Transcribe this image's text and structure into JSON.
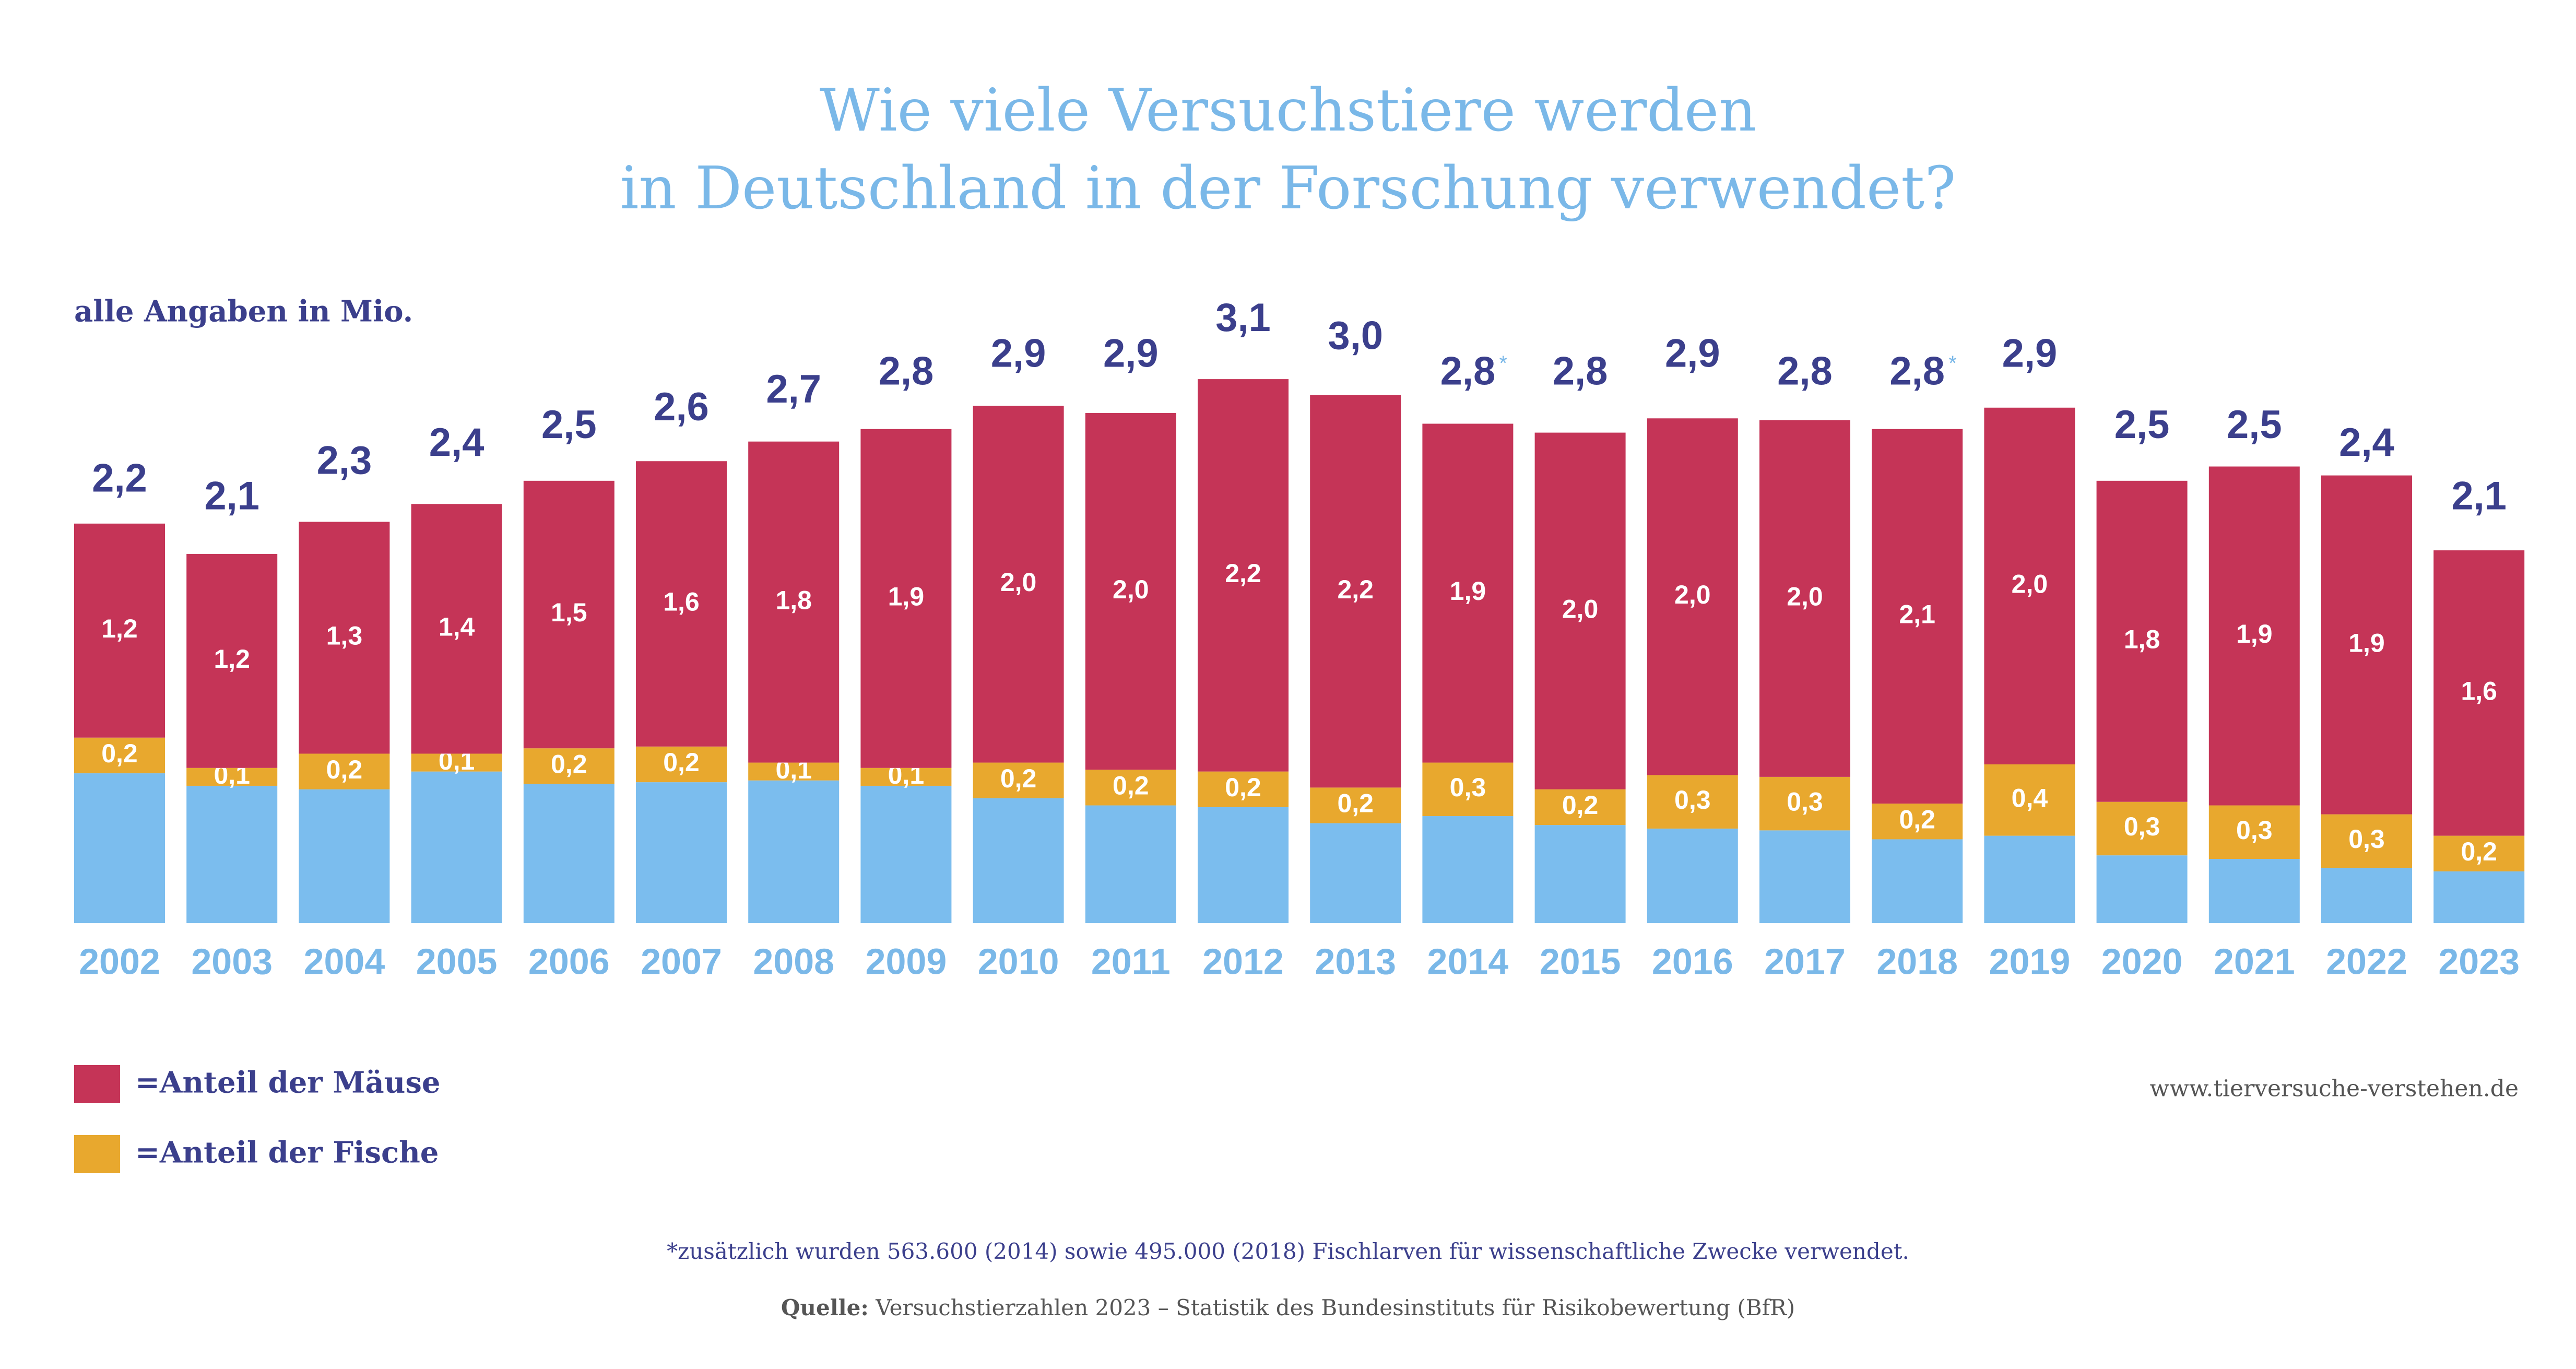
{
  "chart_data": {
    "type": "stacked-bar",
    "title": [
      "Wie viele Versuchstiere werden",
      "in Deutschland in der Forschung verwendet?"
    ],
    "subtitle": "alle Angaben in Mio.",
    "categories": [
      "2002",
      "2003",
      "2004",
      "2005",
      "2006",
      "2007",
      "2008",
      "2009",
      "2010",
      "2011",
      "2012",
      "2013",
      "2014",
      "2015",
      "2016",
      "2017",
      "2018",
      "2019",
      "2020",
      "2021",
      "2022",
      "2023"
    ],
    "series": [
      {
        "color": "#7bbdee",
        "values": [
          0.84,
          0.77,
          0.75,
          0.85,
          0.78,
          0.79,
          0.8,
          0.77,
          0.7,
          0.66,
          0.65,
          0.56,
          0.6,
          0.55,
          0.53,
          0.52,
          0.47,
          0.49,
          0.38,
          0.36,
          0.31,
          0.29
        ]
      },
      {
        "name": "=Anteil der Fische",
        "color": "#e8a82e",
        "values": [
          0.2,
          0.1,
          0.2,
          0.1,
          0.2,
          0.2,
          0.1,
          0.1,
          0.2,
          0.2,
          0.2,
          0.2,
          0.3,
          0.2,
          0.3,
          0.3,
          0.2,
          0.4,
          0.3,
          0.3,
          0.3,
          0.2
        ],
        "value_labels": [
          "0,2",
          "0,1",
          "0,2",
          "0,1",
          "0,2",
          "0,2",
          "0,1",
          "0,1",
          "0,2",
          "0,2",
          "0,2",
          "0,2",
          "0,3",
          "0,2",
          "0,3",
          "0,3",
          "0,2",
          "0,4",
          "0,3",
          "0,3",
          "0,3",
          "0,2"
        ]
      },
      {
        "name": "=Anteil der Mäuse",
        "color": "#c53457",
        "values": [
          1.2,
          1.2,
          1.3,
          1.4,
          1.5,
          1.6,
          1.8,
          1.9,
          2.0,
          2.0,
          2.2,
          2.2,
          1.9,
          2.0,
          2.0,
          2.0,
          2.1,
          2.0,
          1.8,
          1.9,
          1.9,
          1.6
        ],
        "value_labels": [
          "1,2",
          "1,2",
          "1,3",
          "1,4",
          "1,5",
          "1,6",
          "1,8",
          "1,9",
          "2,0",
          "2,0",
          "2,2",
          "2,2",
          "1,9",
          "2,0",
          "2,0",
          "2,0",
          "2,1",
          "2,0",
          "1,8",
          "1,9",
          "1,9",
          "1,6"
        ]
      }
    ],
    "totals": {
      "values": [
        2.2,
        2.1,
        2.3,
        2.4,
        2.5,
        2.6,
        2.7,
        2.8,
        2.9,
        2.9,
        3.1,
        3.0,
        2.8,
        2.8,
        2.9,
        2.8,
        2.8,
        2.9,
        2.5,
        2.5,
        2.4,
        2.1
      ],
      "value_labels": [
        "2,2",
        "2,1",
        "2,3",
        "2,4",
        "2,5",
        "2,6",
        "2,7",
        "2,8",
        "2,9",
        "2,9",
        "3,1",
        "3,0",
        "2,8",
        "2,8",
        "2,9",
        "2,8",
        "2,8",
        "2,9",
        "2,5",
        "2,5",
        "2,4",
        "2,1"
      ],
      "markers": [
        null,
        null,
        null,
        null,
        null,
        null,
        null,
        null,
        null,
        null,
        null,
        null,
        "*",
        null,
        null,
        null,
        "*",
        null,
        null,
        null,
        null,
        null
      ]
    },
    "website": "www.tierversuche-verstehen.de",
    "footnote": "*zusätzlich wurden 563.600 (2014) sowie 495.000 (2018) Fischlarven für wissenschaftliche Zwecke verwendet.",
    "source_label": "Quelle:",
    "source": "Versuchstierzahlen 2023 – Statistik des Bundesinstituts für Risikobewertung (BfR)"
  }
}
